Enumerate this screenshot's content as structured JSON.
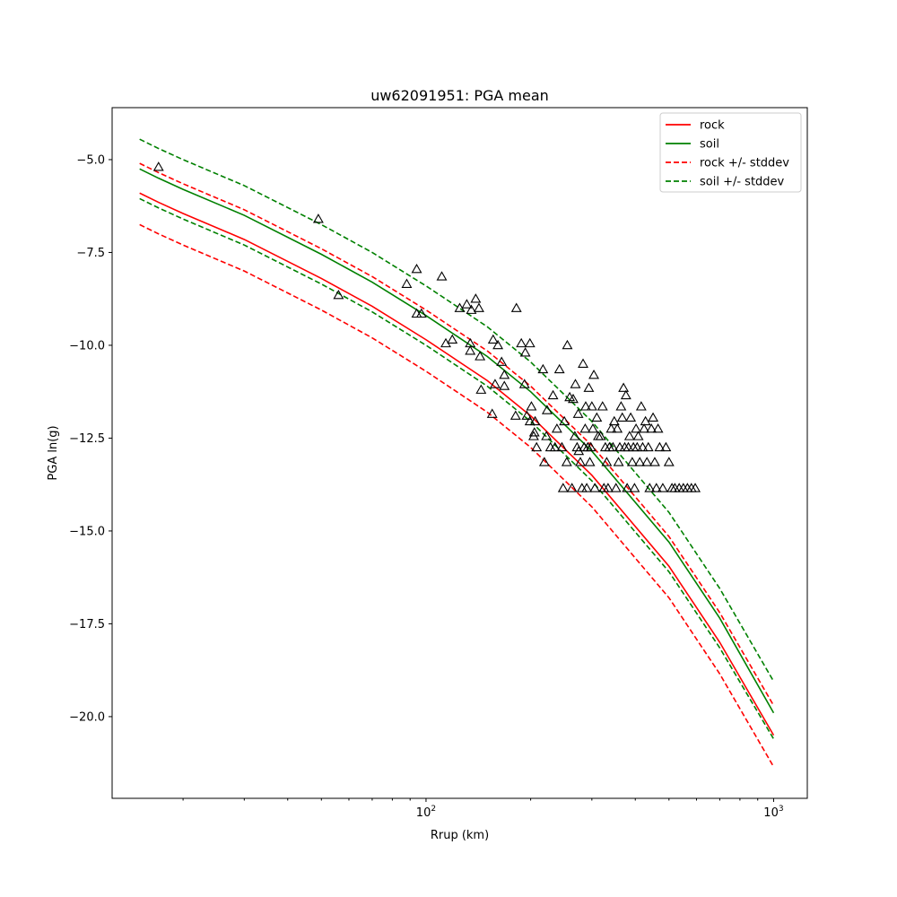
{
  "chart_data": {
    "type": "line",
    "title": "uw62091951: PGA mean",
    "xlabel": "Rrup (km)",
    "ylabel": "PGA ln(g)",
    "xscale": "log",
    "xlim": [
      12.5,
      1250
    ],
    "ylim": [
      -22.2,
      -3.6
    ],
    "xticks": [
      {
        "value": 100,
        "base": "10",
        "exp": "2"
      },
      {
        "value": 1000,
        "base": "10",
        "exp": "3"
      }
    ],
    "yticks": [
      {
        "value": -5.0,
        "label": "−5.0"
      },
      {
        "value": -7.5,
        "label": "−7.5"
      },
      {
        "value": -10.0,
        "label": "−10.0"
      },
      {
        "value": -12.5,
        "label": "−12.5"
      },
      {
        "value": -15.0,
        "label": "−15.0"
      },
      {
        "value": -17.5,
        "label": "−17.5"
      },
      {
        "value": -20.0,
        "label": "−20.0"
      }
    ],
    "grid": false,
    "legend_position": "upper right",
    "x": [
      15,
      17,
      20,
      30,
      50,
      70,
      100,
      150,
      200,
      300,
      500,
      700,
      1000
    ],
    "series": [
      {
        "name": "rock",
        "color": "#ff0000",
        "style": "solid",
        "values": [
          -5.9,
          -6.15,
          -6.45,
          -7.15,
          -8.2,
          -8.95,
          -9.85,
          -10.95,
          -11.9,
          -13.5,
          -15.95,
          -18.0,
          -20.5
        ]
      },
      {
        "name": "soil",
        "color": "#008000",
        "style": "solid",
        "values": [
          -5.25,
          -5.5,
          -5.8,
          -6.5,
          -7.55,
          -8.3,
          -9.2,
          -10.3,
          -11.25,
          -12.85,
          -15.3,
          -17.35,
          -19.9
        ]
      },
      {
        "name": "rock +/- stddev",
        "color": "#ff0000",
        "style": "dashed",
        "values": [
          -5.1,
          -5.35,
          -5.65,
          -6.35,
          -7.4,
          -8.15,
          -9.05,
          -10.15,
          -11.1,
          -12.7,
          -15.15,
          -17.2,
          -19.7
        ]
      },
      {
        "name": "",
        "color": "#ff0000",
        "style": "dashed",
        "values": [
          -6.75,
          -7.0,
          -7.3,
          -8.0,
          -9.05,
          -9.8,
          -10.7,
          -11.8,
          -12.75,
          -14.35,
          -16.8,
          -18.85,
          -21.35
        ]
      },
      {
        "name": "soil +/- stddev",
        "color": "#008000",
        "style": "dashed",
        "values": [
          -4.45,
          -4.7,
          -5.0,
          -5.7,
          -6.75,
          -7.5,
          -8.4,
          -9.5,
          -10.45,
          -12.05,
          -14.5,
          -16.55,
          -19.05
        ]
      },
      {
        "name": "",
        "color": "#008000",
        "style": "dashed",
        "values": [
          -6.05,
          -6.3,
          -6.6,
          -7.3,
          -8.35,
          -9.1,
          -10.0,
          -11.1,
          -12.05,
          -13.65,
          -16.1,
          -18.15,
          -20.6
        ]
      }
    ],
    "observations": {
      "marker": "triangle",
      "color": "#000000",
      "points": [
        [
          17,
          -5.2
        ],
        [
          49,
          -6.6
        ],
        [
          56,
          -8.65
        ],
        [
          88,
          -8.35
        ],
        [
          94,
          -7.95
        ],
        [
          94,
          -9.15
        ],
        [
          97,
          -9.15
        ],
        [
          111,
          -8.15
        ],
        [
          114,
          -9.95
        ],
        [
          119,
          -9.85
        ],
        [
          125,
          -9.0
        ],
        [
          131,
          -8.9
        ],
        [
          134,
          -10.15
        ],
        [
          134,
          -9.95
        ],
        [
          135,
          -9.05
        ],
        [
          139,
          -8.75
        ],
        [
          142,
          -9.0
        ],
        [
          143,
          -10.3
        ],
        [
          144,
          -11.2
        ],
        [
          155,
          -11.85
        ],
        [
          156,
          -9.85
        ],
        [
          158,
          -11.05
        ],
        [
          161,
          -10.0
        ],
        [
          165,
          -10.45
        ],
        [
          168,
          -11.1
        ],
        [
          168,
          -10.8
        ],
        [
          181,
          -11.9
        ],
        [
          182,
          -9.0
        ],
        [
          188,
          -9.95
        ],
        [
          192,
          -11.05
        ],
        [
          193,
          -10.2
        ],
        [
          195,
          -11.9
        ],
        [
          199,
          -12.05
        ],
        [
          199,
          -9.95
        ],
        [
          201,
          -11.65
        ],
        [
          204,
          -12.45
        ],
        [
          205,
          -12.35
        ],
        [
          206,
          -12.05
        ],
        [
          208,
          -12.75
        ],
        [
          217,
          -10.65
        ],
        [
          219,
          -13.15
        ],
        [
          222,
          -12.45
        ],
        [
          223,
          -11.75
        ],
        [
          228,
          -12.75
        ],
        [
          232,
          -11.35
        ],
        [
          235,
          -12.75
        ],
        [
          238,
          -12.25
        ],
        [
          242,
          -10.65
        ],
        [
          246,
          -12.75
        ],
        [
          248,
          -13.85
        ],
        [
          250,
          -12.05
        ],
        [
          254,
          -13.15
        ],
        [
          255,
          -10.0
        ],
        [
          259,
          -11.4
        ],
        [
          263,
          -13.85
        ],
        [
          265,
          -11.45
        ],
        [
          268,
          -12.45
        ],
        [
          269,
          -11.05
        ],
        [
          272,
          -12.75
        ],
        [
          274,
          -11.85
        ],
        [
          275,
          -12.85
        ],
        [
          278,
          -13.15
        ],
        [
          281,
          -13.85
        ],
        [
          283,
          -10.5
        ],
        [
          285,
          -12.75
        ],
        [
          287,
          -12.25
        ],
        [
          288,
          -11.65
        ],
        [
          290,
          -13.85
        ],
        [
          292,
          -12.75
        ],
        [
          294,
          -11.15
        ],
        [
          296,
          -13.15
        ],
        [
          298,
          -12.75
        ],
        [
          300,
          -11.65
        ],
        [
          302,
          -12.25
        ],
        [
          304,
          -10.8
        ],
        [
          306,
          -13.85
        ],
        [
          310,
          -11.95
        ],
        [
          313,
          -12.45
        ],
        [
          318,
          -12.45
        ],
        [
          322,
          -11.65
        ],
        [
          325,
          -13.85
        ],
        [
          328,
          -12.75
        ],
        [
          331,
          -13.15
        ],
        [
          334,
          -13.85
        ],
        [
          337,
          -12.75
        ],
        [
          341,
          -12.25
        ],
        [
          345,
          -12.75
        ],
        [
          348,
          -12.05
        ],
        [
          352,
          -13.85
        ],
        [
          355,
          -12.25
        ],
        [
          358,
          -13.15
        ],
        [
          361,
          -12.75
        ],
        [
          364,
          -11.65
        ],
        [
          367,
          -11.95
        ],
        [
          370,
          -11.15
        ],
        [
          373,
          -12.75
        ],
        [
          376,
          -11.35
        ],
        [
          379,
          -13.85
        ],
        [
          382,
          -12.75
        ],
        [
          385,
          -12.45
        ],
        [
          388,
          -11.95
        ],
        [
          392,
          -13.15
        ],
        [
          395,
          -12.75
        ],
        [
          398,
          -13.85
        ],
        [
          402,
          -12.25
        ],
        [
          405,
          -12.75
        ],
        [
          408,
          -12.45
        ],
        [
          412,
          -13.15
        ],
        [
          416,
          -11.65
        ],
        [
          420,
          -12.75
        ],
        [
          424,
          -12.25
        ],
        [
          428,
          -12.05
        ],
        [
          432,
          -13.15
        ],
        [
          436,
          -12.75
        ],
        [
          440,
          -13.85
        ],
        [
          445,
          -12.25
        ],
        [
          450,
          -11.95
        ],
        [
          455,
          -13.15
        ],
        [
          460,
          -13.85
        ],
        [
          465,
          -12.25
        ],
        [
          470,
          -12.75
        ],
        [
          480,
          -13.85
        ],
        [
          490,
          -12.75
        ],
        [
          500,
          -13.15
        ],
        [
          510,
          -13.85
        ],
        [
          520,
          -13.85
        ],
        [
          535,
          -13.85
        ],
        [
          550,
          -13.85
        ],
        [
          565,
          -13.85
        ],
        [
          580,
          -13.85
        ],
        [
          595,
          -13.85
        ]
      ]
    }
  }
}
